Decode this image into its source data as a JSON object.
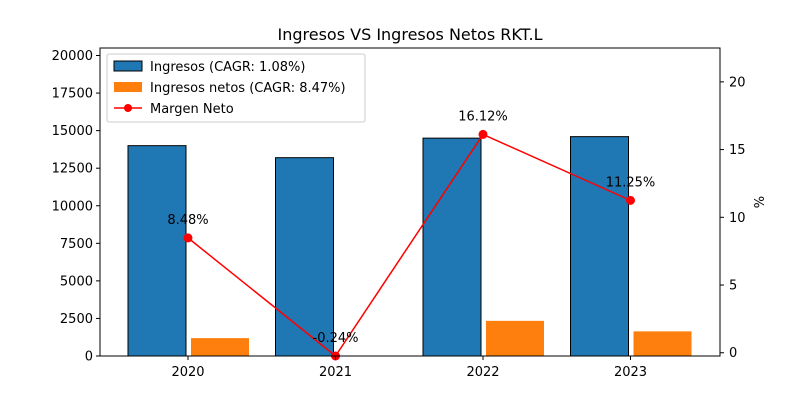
{
  "chart_data": {
    "type": "bar",
    "title": "Ingresos VS Ingresos Netos RKT.L",
    "categories": [
      "2020",
      "2021",
      "2022",
      "2023"
    ],
    "y_left": {
      "ylim": [
        0,
        20500
      ],
      "ticks": [
        0,
        2500,
        5000,
        7500,
        10000,
        12500,
        15000,
        17500,
        20000
      ]
    },
    "y_right": {
      "label": "%",
      "ylim": [
        -0.24,
        22.5
      ],
      "ticks": [
        0,
        5,
        10,
        15,
        20
      ]
    },
    "series": [
      {
        "name": "Ingresos (CAGR: 1.08%)",
        "kind": "bar",
        "color": "#1f77b4",
        "values": [
          14000,
          13200,
          14500,
          14600
        ]
      },
      {
        "name": "Ingresos netos (CAGR: 8.47%)",
        "kind": "bar",
        "color": "#ff7f0e",
        "values": [
          1190,
          -30,
          2340,
          1640
        ]
      },
      {
        "name": "Margen Neto",
        "kind": "line",
        "axis": "right",
        "color": "#ff0000",
        "values": [
          8.48,
          -0.24,
          16.12,
          11.25
        ]
      }
    ],
    "point_labels": [
      "8.48%",
      "-0.24%",
      "16.12%",
      "11.25%"
    ],
    "legend": "top-left",
    "grid": false
  }
}
